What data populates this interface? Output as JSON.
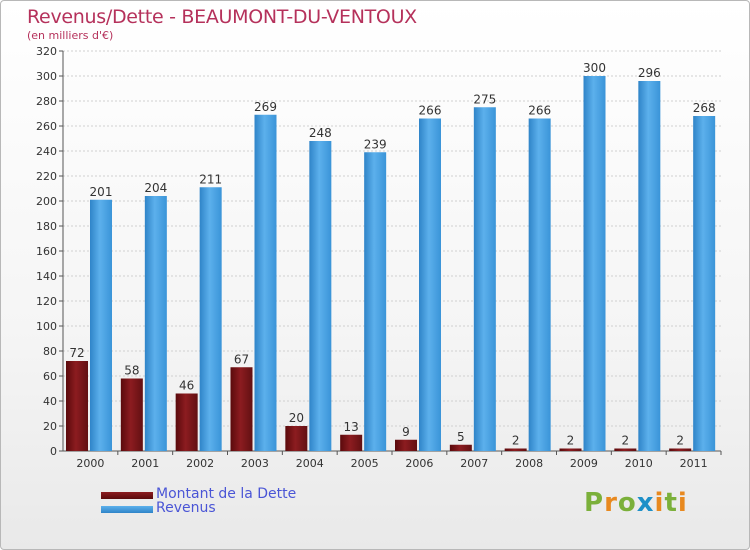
{
  "header": {
    "title": "Revenus/Dette - BEAUMONT-DU-VENTOUX",
    "subtitle": "(en milliers d'€)"
  },
  "legend": {
    "items": [
      {
        "label": "Montant de la Dette",
        "color": "#6e0d10"
      },
      {
        "label": "Revenus",
        "color": "#3b99e0"
      }
    ]
  },
  "logo": {
    "text": "Proxiti",
    "colors": [
      "#7bb03a",
      "#e8891f",
      "#7bb03a",
      "#1e90c8",
      "#e8891f",
      "#7bb03a",
      "#e8891f"
    ]
  },
  "colors": {
    "grid": "#d0d0d0",
    "axis": "#555555",
    "label": "#333333"
  },
  "chart_data": {
    "type": "bar",
    "title": "Revenus/Dette - BEAUMONT-DU-VENTOUX",
    "ylabel": "(en milliers d'€)",
    "categories": [
      "2000",
      "2001",
      "2002",
      "2003",
      "2004",
      "2005",
      "2006",
      "2007",
      "2008",
      "2009",
      "2010",
      "2011"
    ],
    "series": [
      {
        "name": "Montant de la Dette",
        "color": "#6e0d10",
        "values": [
          72,
          58,
          46,
          67,
          20,
          13,
          9,
          5,
          2,
          2,
          2,
          2
        ]
      },
      {
        "name": "Revenus",
        "color": "#3b99e0",
        "values": [
          201,
          204,
          211,
          269,
          248,
          239,
          266,
          275,
          266,
          300,
          296,
          268
        ]
      }
    ],
    "ylim": [
      0,
      320
    ],
    "ytick_step": 20,
    "grid": true,
    "legend_position": "bottom-left"
  }
}
